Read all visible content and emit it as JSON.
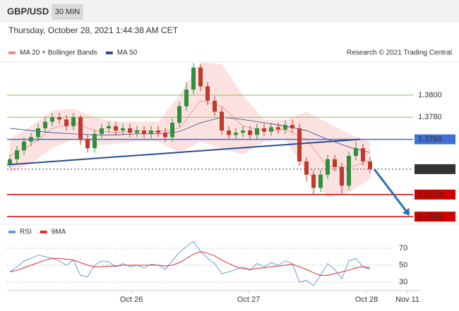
{
  "header": {
    "symbol": "GBP/USD",
    "timeframe": "30 MIN",
    "datetime": "Thursday, October 28, 2021 1:44:38 AM CET"
  },
  "chart_data": [
    {
      "type": "candlestick",
      "credit": "Research © 2021 Trading Central",
      "xlim": [
        -0.4,
        57.1
      ],
      "ylim": [
        1.3685,
        1.383
      ],
      "up_color": "#2f8f3a",
      "down_color": "#c0392b",
      "candles": {
        "x": [
          0,
          1,
          2,
          3,
          4,
          5,
          6,
          7,
          8,
          9,
          10,
          11,
          12,
          13,
          14,
          15,
          16,
          17,
          18,
          19,
          20,
          21,
          22,
          23,
          24,
          25,
          26,
          27,
          28,
          29,
          30,
          31,
          32,
          33,
          34,
          35,
          36,
          37,
          38,
          39,
          40,
          41,
          42,
          43,
          44,
          45,
          46,
          47,
          48,
          49,
          50,
          51
        ],
        "open": [
          1.3738,
          1.3742,
          1.375,
          1.3758,
          1.3762,
          1.377,
          1.3776,
          1.378,
          1.3778,
          1.3772,
          1.378,
          1.376,
          1.3752,
          1.3765,
          1.377,
          1.3772,
          1.3768,
          1.377,
          1.3766,
          1.3768,
          1.3765,
          1.3768,
          1.3766,
          1.3762,
          1.3775,
          1.379,
          1.3805,
          1.3825,
          1.3808,
          1.3795,
          1.3785,
          1.3768,
          1.3764,
          1.3766,
          1.3768,
          1.3764,
          1.377,
          1.3767,
          1.3771,
          1.3769,
          1.3773,
          1.377,
          1.374,
          1.3728,
          1.3716,
          1.3728,
          1.3742,
          1.3735,
          1.3718,
          1.3745,
          1.3752,
          1.374
        ],
        "high": [
          1.3746,
          1.3754,
          1.3762,
          1.3766,
          1.3774,
          1.378,
          1.3784,
          1.3784,
          1.3782,
          1.3784,
          1.3782,
          1.3764,
          1.3769,
          1.3774,
          1.3776,
          1.3776,
          1.3774,
          1.3774,
          1.3772,
          1.3772,
          1.3772,
          1.3772,
          1.377,
          1.3779,
          1.3794,
          1.3812,
          1.3829,
          1.3828,
          1.3812,
          1.3799,
          1.3789,
          1.3772,
          1.377,
          1.3772,
          1.3772,
          1.3774,
          1.3774,
          1.3775,
          1.3775,
          1.3777,
          1.3778,
          1.3774,
          1.3744,
          1.3732,
          1.3732,
          1.3746,
          1.3746,
          1.3739,
          1.3749,
          1.3758,
          1.3756,
          1.3744
        ],
        "low": [
          1.3734,
          1.3738,
          1.3746,
          1.3754,
          1.3758,
          1.3766,
          1.3772,
          1.3774,
          1.3768,
          1.3768,
          1.3755,
          1.3748,
          1.3748,
          1.3761,
          1.3766,
          1.3764,
          1.3764,
          1.3762,
          1.3762,
          1.3761,
          1.3761,
          1.3762,
          1.3758,
          1.3758,
          1.3771,
          1.3786,
          1.3801,
          1.3804,
          1.3791,
          1.3781,
          1.3764,
          1.376,
          1.376,
          1.3762,
          1.376,
          1.376,
          1.3763,
          1.3763,
          1.3765,
          1.3765,
          1.3766,
          1.3736,
          1.3722,
          1.371,
          1.3712,
          1.3724,
          1.3731,
          1.3711,
          1.3714,
          1.3741,
          1.3736,
          1.3729
        ],
        "close": [
          1.3742,
          1.375,
          1.3758,
          1.3762,
          1.377,
          1.3776,
          1.378,
          1.3778,
          1.3772,
          1.378,
          1.376,
          1.3752,
          1.3765,
          1.377,
          1.3772,
          1.3768,
          1.377,
          1.3766,
          1.3768,
          1.3765,
          1.3768,
          1.3766,
          1.3762,
          1.3775,
          1.379,
          1.3805,
          1.3825,
          1.3808,
          1.3795,
          1.3785,
          1.3768,
          1.3764,
          1.3766,
          1.3768,
          1.3764,
          1.377,
          1.3767,
          1.3771,
          1.3769,
          1.3773,
          1.377,
          1.374,
          1.3728,
          1.3716,
          1.3728,
          1.3742,
          1.3735,
          1.3718,
          1.3745,
          1.3752,
          1.374,
          1.3733
        ]
      },
      "indicator_x": [
        0,
        3,
        6,
        9,
        12,
        15,
        18,
        21,
        24,
        27,
        30,
        33,
        36,
        39,
        42,
        45,
        48,
        51
      ],
      "series": [
        {
          "name": "MA 20 + Bollinger Bands",
          "color": "#f08a8a",
          "values": [
            1.3745,
            1.3755,
            1.377,
            1.3775,
            1.3768,
            1.3766,
            1.3768,
            1.3767,
            1.377,
            1.3795,
            1.379,
            1.3772,
            1.3768,
            1.3769,
            1.376,
            1.3735,
            1.3735,
            1.374
          ],
          "upper": [
            1.376,
            1.3772,
            1.3786,
            1.3788,
            1.378,
            1.3776,
            1.3776,
            1.3776,
            1.38,
            1.383,
            1.3828,
            1.38,
            1.3778,
            1.3778,
            1.3785,
            1.3775,
            1.3765,
            1.3758
          ],
          "lower": [
            1.373,
            1.3738,
            1.3752,
            1.376,
            1.3754,
            1.3756,
            1.3758,
            1.3758,
            1.3748,
            1.3758,
            1.3752,
            1.3746,
            1.3758,
            1.376,
            1.373,
            1.3708,
            1.3712,
            1.3724
          ]
        },
        {
          "name": "MA 50",
          "color": "#2b4c8c",
          "values": [
            1.377,
            1.3768,
            1.3766,
            1.3765,
            1.3764,
            1.3764,
            1.3765,
            1.3765,
            1.3767,
            1.3775,
            1.378,
            1.3778,
            1.3775,
            1.3772,
            1.3768,
            1.376,
            1.3753,
            1.3748
          ]
        }
      ],
      "levels": [
        {
          "value": 1.38,
          "label": "1.3800",
          "color": "#8bc34a",
          "box": false,
          "dash": false
        },
        {
          "value": 1.378,
          "label": "1.3780",
          "color": "#8bc34a",
          "box": false,
          "dash": false
        },
        {
          "value": 1.376,
          "label": "1.3760",
          "color": "#3d6fd8",
          "box": true,
          "dash": false
        },
        {
          "value": 1.3733,
          "label": "1.3733",
          "color": "#333333",
          "box": true,
          "dash": true
        },
        {
          "value": 1.371,
          "label": "1.3710",
          "color": "#cc0000",
          "box": true,
          "dash": false
        },
        {
          "value": 1.369,
          "label": "1.3690",
          "color": "#cc0000",
          "box": true,
          "dash": false
        }
      ],
      "trendline": {
        "color": "#2b4c8c",
        "x": [
          -0.4,
          49.6
        ],
        "y": [
          1.3737,
          1.376
        ]
      },
      "arrow": {
        "color": "#2f6db5",
        "x": [
          51.6,
          56.6
        ],
        "y": [
          1.3733,
          1.3691
        ]
      }
    },
    {
      "type": "line",
      "xlim": [
        -0.4,
        57.1
      ],
      "ylim": [
        20,
        90
      ],
      "yticks": [
        30,
        50,
        70
      ],
      "xticks": [
        {
          "value": 17.2,
          "label": "Oct 26"
        },
        {
          "value": 33.8,
          "label": "Oct 27"
        },
        {
          "value": 50.5,
          "label": "Oct 28"
        },
        {
          "value": 56.3,
          "label": "Nov 11"
        }
      ],
      "x": [
        0,
        1,
        2,
        3,
        4,
        5,
        6,
        7,
        8,
        9,
        10,
        11,
        12,
        13,
        14,
        15,
        16,
        17,
        18,
        19,
        20,
        21,
        22,
        23,
        24,
        25,
        26,
        27,
        28,
        29,
        30,
        31,
        32,
        33,
        34,
        35,
        36,
        37,
        38,
        39,
        40,
        41,
        42,
        43,
        44,
        45,
        46,
        47,
        48,
        49,
        50,
        51
      ],
      "series": [
        {
          "name": "RSI",
          "color": "#6a9be0",
          "values": [
            42,
            48,
            55,
            58,
            62,
            60,
            58,
            55,
            50,
            56,
            38,
            36,
            50,
            55,
            54,
            48,
            52,
            48,
            50,
            47,
            51,
            50,
            45,
            55,
            65,
            72,
            78,
            66,
            58,
            52,
            40,
            42,
            45,
            48,
            44,
            52,
            48,
            53,
            50,
            55,
            52,
            30,
            32,
            26,
            38,
            52,
            45,
            34,
            55,
            58,
            48,
            45
          ]
        },
        {
          "name": "9MA",
          "color": "#d32f2f",
          "values": [
            42,
            44,
            47,
            50,
            53,
            56,
            58,
            58,
            57,
            56,
            53,
            50,
            48,
            48,
            49,
            49,
            50,
            50,
            50,
            50,
            50,
            50,
            49,
            50,
            53,
            58,
            63,
            66,
            64,
            61,
            56,
            52,
            48,
            46,
            45,
            46,
            47,
            48,
            49,
            50,
            51,
            48,
            45,
            41,
            38,
            38,
            40,
            42,
            44,
            47,
            48,
            47
          ]
        }
      ]
    }
  ]
}
